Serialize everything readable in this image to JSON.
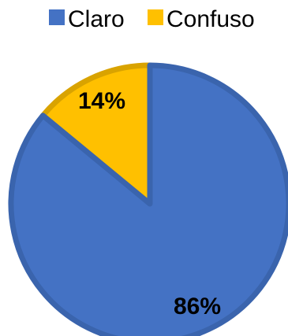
{
  "chart_data": {
    "type": "pie",
    "categories": [
      "Claro",
      "Confuso"
    ],
    "values": [
      86,
      14
    ],
    "data_labels": [
      "86%",
      "14%"
    ],
    "colors": [
      "#4472C4",
      "#FFC000"
    ],
    "title": "",
    "legend_position": "top",
    "start_angle": "12 o'clock",
    "direction": "counterclockwise from the Confuso slice"
  }
}
